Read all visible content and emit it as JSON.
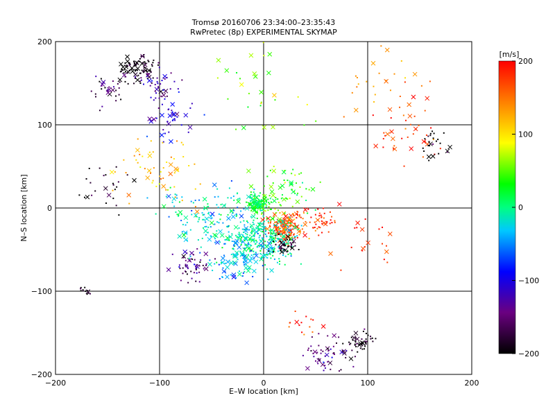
{
  "chart_data": {
    "type": "scatter",
    "title": "Tromsø 20160706 23:34:00–23:35:43",
    "subtitle": "RwPretec (8p) EXPERIMENTAL SKYMAP",
    "xlabel": "E–W location [km]",
    "ylabel": "N–S location [km]",
    "xlim": [
      -200,
      200
    ],
    "ylim": [
      -200,
      200
    ],
    "x_ticks": [
      "−200",
      "−100",
      "0",
      "100",
      "200"
    ],
    "y_ticks": [
      "200",
      "100",
      "0",
      "−100",
      "−200"
    ],
    "grid": true,
    "colorbar": {
      "label": "[m/s]",
      "range": [
        -200,
        200
      ],
      "ticks": [
        "200",
        "100",
        "0",
        "−100",
        "−200"
      ]
    },
    "markers": [
      "x",
      "+"
    ],
    "clusters": [
      {
        "x": -120,
        "y": 170,
        "spread": 12,
        "count": 90,
        "v": -200
      },
      {
        "x": -145,
        "y": 140,
        "spread": 14,
        "count": 35,
        "v": -160
      },
      {
        "x": -100,
        "y": 150,
        "spread": 15,
        "count": 40,
        "v": -130
      },
      {
        "x": -90,
        "y": 110,
        "spread": 18,
        "count": 40,
        "v": -110
      },
      {
        "x": 22,
        "y": -22,
        "spread": 12,
        "count": 160,
        "v": 170
      },
      {
        "x": 55,
        "y": -15,
        "spread": 12,
        "count": 40,
        "v": 190
      },
      {
        "x": -5,
        "y": 5,
        "spread": 7,
        "count": 140,
        "v": 20
      },
      {
        "x": 0,
        "y": -40,
        "spread": 22,
        "count": 280,
        "v": -10
      },
      {
        "x": -55,
        "y": -10,
        "spread": 28,
        "count": 140,
        "v": -20
      },
      {
        "x": -25,
        "y": -60,
        "spread": 22,
        "count": 80,
        "v": -40
      },
      {
        "x": -70,
        "y": -70,
        "spread": 14,
        "count": 55,
        "v": -150
      },
      {
        "x": 20,
        "y": -45,
        "spread": 8,
        "count": 40,
        "v": -200
      },
      {
        "x": 20,
        "y": 20,
        "spread": 22,
        "count": 70,
        "v": 40
      },
      {
        "x": 92,
        "y": -160,
        "spread": 9,
        "count": 45,
        "v": -200
      },
      {
        "x": 60,
        "y": -175,
        "spread": 18,
        "count": 55,
        "v": -150
      },
      {
        "x": 40,
        "y": -140,
        "spread": 10,
        "count": 15,
        "v": 190
      },
      {
        "x": 135,
        "y": 90,
        "spread": 25,
        "count": 40,
        "v": 185
      },
      {
        "x": 165,
        "y": 78,
        "spread": 14,
        "count": 25,
        "v": -200
      },
      {
        "x": 110,
        "y": 140,
        "spread": 40,
        "count": 30,
        "v": 150
      },
      {
        "x": -172,
        "y": -100,
        "spread": 5,
        "count": 12,
        "v": -200
      },
      {
        "x": -155,
        "y": 20,
        "spread": 25,
        "count": 25,
        "v": -200
      },
      {
        "x": -100,
        "y": 40,
        "spread": 30,
        "count": 60,
        "v": 120
      },
      {
        "x": 100,
        "y": -40,
        "spread": 25,
        "count": 20,
        "v": 190
      },
      {
        "x": 0,
        "y": 140,
        "spread": 35,
        "count": 30,
        "v": 60
      }
    ]
  }
}
